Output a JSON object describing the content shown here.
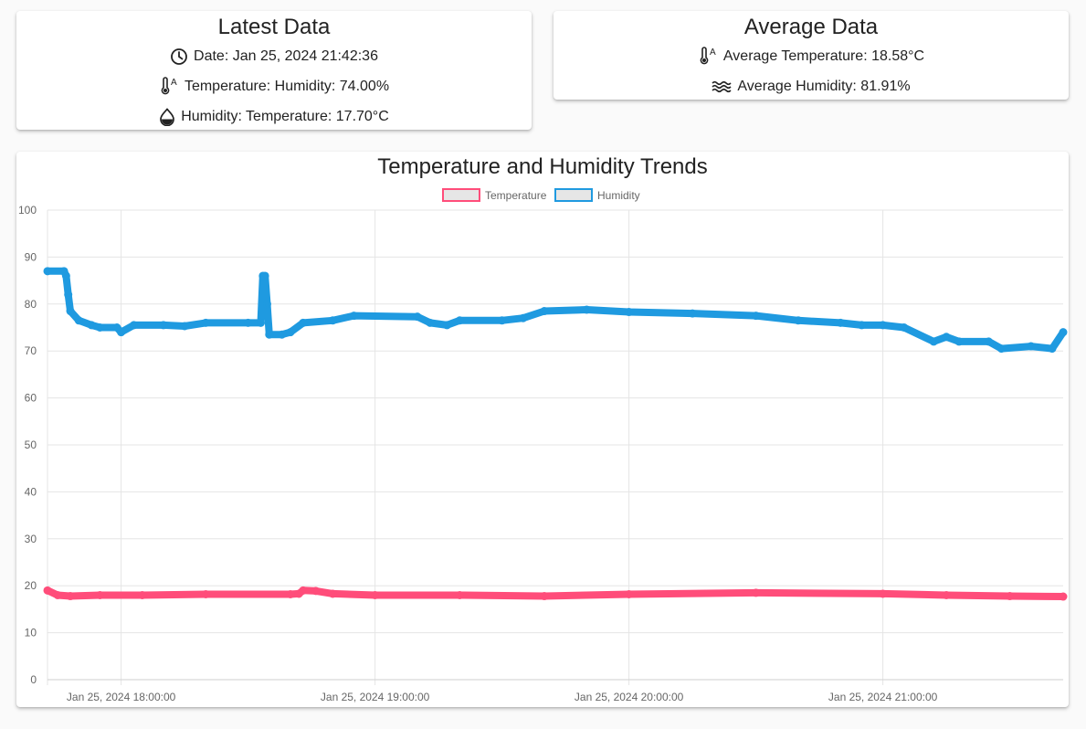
{
  "latest": {
    "title": "Latest Data",
    "date_text": "Date: Jan 25, 2024 21:42:36",
    "temp_text": "Temperature: Humidity: 74.00%",
    "humidity_text": "Humidity: Temperature: 17.70°C",
    "icons": [
      "clock-icon",
      "thermometer-icon",
      "water-drop-icon"
    ]
  },
  "average": {
    "title": "Average Data",
    "temp_text": "Average Temperature: 18.58°C",
    "humidity_text": "Average Humidity: 81.91%",
    "icons": [
      "thermometer-icon",
      "waves-icon"
    ]
  },
  "colors": {
    "temperature": "#ff4d7a",
    "humidity": "#1f9ae0",
    "legend_fill": "#e6e6e6",
    "grid": "#e5e5e5"
  },
  "chart_data": {
    "type": "line",
    "title": "Temperature and Humidity Trends",
    "legend_position": "top",
    "grid": true,
    "xlabel": "",
    "ylabel": "",
    "ylim": [
      0,
      100
    ],
    "y_ticks": [
      0,
      10,
      20,
      30,
      40,
      50,
      60,
      70,
      80,
      90,
      100
    ],
    "x_range": [
      "Jan 25, 2024 17:42:36",
      "Jan 25, 2024 21:42:36"
    ],
    "x_ticks": [
      {
        "time": "Jan 25, 2024 18:00:00",
        "label": "Jan 25, 2024 18:00:00"
      },
      {
        "time": "Jan 25, 2024 19:00:00",
        "label": "Jan 25, 2024 19:00:00"
      },
      {
        "time": "Jan 25, 2024 20:00:00",
        "label": "Jan 25, 2024 20:00:00"
      },
      {
        "time": "Jan 25, 2024 21:00:00",
        "label": "Jan 25, 2024 21:00:00"
      }
    ],
    "series": [
      {
        "name": "Temperature",
        "points": [
          [
            "Jan 25, 2024 17:42:36",
            19.0
          ],
          [
            "Jan 25, 2024 17:45:00",
            18.0
          ],
          [
            "Jan 25, 2024 17:48:00",
            17.8
          ],
          [
            "Jan 25, 2024 17:55:00",
            18.0
          ],
          [
            "Jan 25, 2024 18:05:00",
            18.0
          ],
          [
            "Jan 25, 2024 18:20:00",
            18.2
          ],
          [
            "Jan 25, 2024 18:40:00",
            18.2
          ],
          [
            "Jan 25, 2024 18:42:00",
            18.3
          ],
          [
            "Jan 25, 2024 18:43:00",
            19.0
          ],
          [
            "Jan 25, 2024 18:46:00",
            18.9
          ],
          [
            "Jan 25, 2024 18:50:00",
            18.3
          ],
          [
            "Jan 25, 2024 19:00:00",
            18.0
          ],
          [
            "Jan 25, 2024 19:20:00",
            18.0
          ],
          [
            "Jan 25, 2024 19:40:00",
            17.8
          ],
          [
            "Jan 25, 2024 20:00:00",
            18.2
          ],
          [
            "Jan 25, 2024 20:30:00",
            18.5
          ],
          [
            "Jan 25, 2024 21:00:00",
            18.3
          ],
          [
            "Jan 25, 2024 21:15:00",
            18.0
          ],
          [
            "Jan 25, 2024 21:30:00",
            17.8
          ],
          [
            "Jan 25, 2024 21:42:36",
            17.7
          ]
        ]
      },
      {
        "name": "Humidity",
        "points": [
          [
            "Jan 25, 2024 17:42:36",
            87.0
          ],
          [
            "Jan 25, 2024 17:46:30",
            87.0
          ],
          [
            "Jan 25, 2024 17:47:00",
            86.0
          ],
          [
            "Jan 25, 2024 17:47:30",
            82.0
          ],
          [
            "Jan 25, 2024 17:48:00",
            78.5
          ],
          [
            "Jan 25, 2024 17:50:00",
            76.5
          ],
          [
            "Jan 25, 2024 17:53:00",
            75.5
          ],
          [
            "Jan 25, 2024 17:55:00",
            75.0
          ],
          [
            "Jan 25, 2024 17:59:00",
            75.0
          ],
          [
            "Jan 25, 2024 18:00:00",
            74.0
          ],
          [
            "Jan 25, 2024 18:03:00",
            75.5
          ],
          [
            "Jan 25, 2024 18:10:00",
            75.5
          ],
          [
            "Jan 25, 2024 18:15:00",
            75.3
          ],
          [
            "Jan 25, 2024 18:20:00",
            76.0
          ],
          [
            "Jan 25, 2024 18:30:00",
            76.0
          ],
          [
            "Jan 25, 2024 18:33:00",
            76.0
          ],
          [
            "Jan 25, 2024 18:33:30",
            86.0
          ],
          [
            "Jan 25, 2024 18:34:00",
            86.0
          ],
          [
            "Jan 25, 2024 18:34:30",
            80.0
          ],
          [
            "Jan 25, 2024 18:35:00",
            73.5
          ],
          [
            "Jan 25, 2024 18:38:00",
            73.5
          ],
          [
            "Jan 25, 2024 18:40:00",
            74.0
          ],
          [
            "Jan 25, 2024 18:43:00",
            76.0
          ],
          [
            "Jan 25, 2024 18:50:00",
            76.5
          ],
          [
            "Jan 25, 2024 18:55:00",
            77.5
          ],
          [
            "Jan 25, 2024 19:10:00",
            77.3
          ],
          [
            "Jan 25, 2024 19:13:00",
            76.0
          ],
          [
            "Jan 25, 2024 19:17:00",
            75.5
          ],
          [
            "Jan 25, 2024 19:20:00",
            76.5
          ],
          [
            "Jan 25, 2024 19:30:00",
            76.5
          ],
          [
            "Jan 25, 2024 19:35:00",
            77.0
          ],
          [
            "Jan 25, 2024 19:40:00",
            78.5
          ],
          [
            "Jan 25, 2024 19:50:00",
            78.8
          ],
          [
            "Jan 25, 2024 20:00:00",
            78.3
          ],
          [
            "Jan 25, 2024 20:15:00",
            78.0
          ],
          [
            "Jan 25, 2024 20:30:00",
            77.5
          ],
          [
            "Jan 25, 2024 20:40:00",
            76.5
          ],
          [
            "Jan 25, 2024 20:50:00",
            76.0
          ],
          [
            "Jan 25, 2024 20:55:00",
            75.5
          ],
          [
            "Jan 25, 2024 21:00:00",
            75.5
          ],
          [
            "Jan 25, 2024 21:05:00",
            75.0
          ],
          [
            "Jan 25, 2024 21:12:00",
            72.0
          ],
          [
            "Jan 25, 2024 21:15:00",
            73.0
          ],
          [
            "Jan 25, 2024 21:18:00",
            72.0
          ],
          [
            "Jan 25, 2024 21:25:00",
            72.0
          ],
          [
            "Jan 25, 2024 21:28:00",
            70.5
          ],
          [
            "Jan 25, 2024 21:35:00",
            71.0
          ],
          [
            "Jan 25, 2024 21:40:00",
            70.5
          ],
          [
            "Jan 25, 2024 21:42:36",
            74.0
          ]
        ]
      }
    ]
  }
}
